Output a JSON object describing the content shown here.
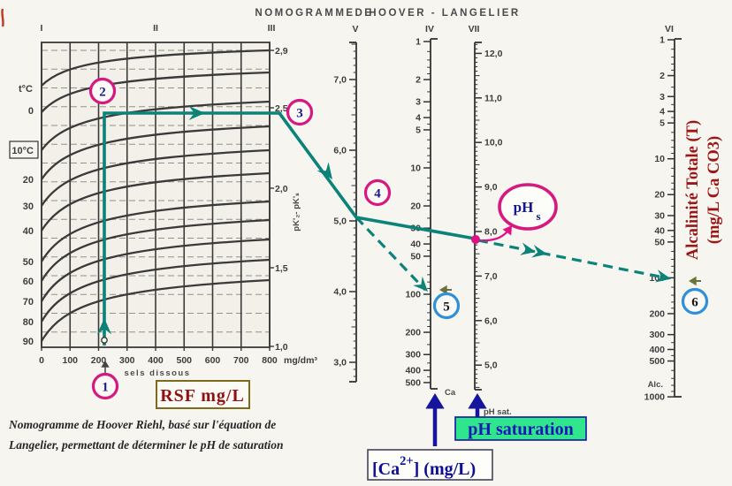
{
  "title": {
    "p1": "NOMOGRAMME",
    "p2": "DE",
    "p3": "HOOVER - LANGELIER"
  },
  "graph": {
    "numerals": [
      "I",
      "II",
      "III"
    ],
    "temp_scale": {
      "title": "t°C",
      "labels": [
        "0",
        "10°C",
        "20",
        "30",
        "40",
        "50",
        "60",
        "70",
        "80",
        "90"
      ],
      "boxed": "10°C"
    },
    "x_axis": {
      "labels": [
        "0",
        "100",
        "200",
        "300",
        "400",
        "500",
        "600",
        "700",
        "800"
      ],
      "unit": "mg/dm³",
      "title": "sels dissous"
    },
    "right_axis": {
      "labels": [
        "2,9",
        "2,5",
        "2,0",
        "1,5",
        "1,0"
      ],
      "title": "pK'₂- pK'ₛ"
    }
  },
  "scales": {
    "v": {
      "numeral": "V",
      "major_labels": [
        "7,0",
        "6,0",
        "5,0",
        "4,0",
        "3,0"
      ]
    },
    "iv": {
      "numeral": "IV",
      "sublabel": "Ca",
      "major_labels": [
        "1",
        "2",
        "3",
        "4",
        "5",
        "10",
        "20",
        "30",
        "40",
        "50",
        "100",
        "200",
        "300",
        "400",
        "500"
      ]
    },
    "vii": {
      "numeral": "VII",
      "sublabel": "pH sat.",
      "major_labels": [
        "12,0",
        "11,0",
        "10,0",
        "9,0",
        "8,0",
        "7,0",
        "6,0",
        "5,0"
      ]
    },
    "vi": {
      "numeral": "VI",
      "sublabel": "Alc.",
      "major_labels": [
        "1",
        "2",
        "3",
        "4",
        "5",
        "10",
        "20",
        "30",
        "40",
        "50",
        "100",
        "200",
        "300",
        "400",
        "500",
        "1000"
      ]
    }
  },
  "annotations": {
    "steps": [
      "1",
      "2",
      "3",
      "4",
      "5",
      "6"
    ],
    "rsf_label": "RSF mg/L",
    "ph_saturation_label": "pH saturation",
    "ca_box": {
      "p1": "[Ca",
      "sup": "2+",
      "p2": "] (mg/L)"
    },
    "phs": {
      "main": "pH",
      "sub": "s"
    },
    "alcalinite": {
      "line1": "Alcalinité Totale (T)",
      "line2": "(mg/L Ca CO3)"
    },
    "caption": {
      "line1": "Nomogramme de Hoover Riehl, basé sur l'équation de",
      "line2": "Langelier, permettant de déterminer le pH de saturation"
    }
  },
  "colors": {
    "teal": "#0c8378",
    "magenta": "#d6187f",
    "navy": "#15159e",
    "blue_ring": "#2f8fd9",
    "dark_red": "#8f1111",
    "green_bg": "#2fe68c",
    "olive": "#6f6f3a",
    "ink": "#3a3a3a"
  },
  "chart_data": {
    "type": "nomogram",
    "title": "NOMOGRAMME DE HOOVER-LANGELIER",
    "graph_curves_temperatures_c": [
      0,
      10,
      20,
      30,
      40,
      50,
      60,
      70,
      80,
      90
    ],
    "x_axis": {
      "label": "sels dissous",
      "unit": "mg/dm³",
      "range": [
        0,
        800
      ],
      "tick_step": 100
    },
    "graph_output_axis": {
      "label": "pK'2 - pK's",
      "tick_values": [
        2.9,
        2.5,
        2.0,
        1.5,
        1.0
      ]
    },
    "scales": [
      {
        "numeral": "I",
        "role": "graph left edge (temperature labels)"
      },
      {
        "numeral": "II",
        "role": "graph interior reference line at 400 mg/dm³"
      },
      {
        "numeral": "III",
        "role": "pK'2 - pK's read-off",
        "values": [
          2.9,
          2.5,
          2.0,
          1.5,
          1.0
        ]
      },
      {
        "numeral": "V",
        "role": "pivot scale",
        "values": [
          7.0,
          6.0,
          5.0,
          4.0,
          3.0
        ],
        "scale": "linear"
      },
      {
        "numeral": "IV",
        "role": "calcium Ca (mg/L)",
        "values": [
          1,
          2,
          3,
          4,
          5,
          10,
          20,
          30,
          40,
          50,
          100,
          200,
          300,
          400,
          500
        ],
        "scale": "log"
      },
      {
        "numeral": "VII",
        "role": "pH saturation result",
        "values": [
          12.0,
          11.0,
          10.0,
          9.0,
          8.0,
          7.0,
          6.0,
          5.0
        ],
        "scale": "linear"
      },
      {
        "numeral": "VI",
        "role": "alcalinité totale (mg/L CaCO3)",
        "values": [
          1,
          2,
          3,
          4,
          5,
          10,
          20,
          30,
          40,
          50,
          100,
          200,
          300,
          400,
          500,
          1000
        ],
        "scale": "log"
      }
    ],
    "worked_example": {
      "step1_sels_dissous_RSF_mg_L": 220,
      "step2_temperature_c": 10,
      "step3_pK2_minus_pKs": 2.5,
      "step4_scale_v_value": 5.05,
      "step5_calcium_mg_L": 100,
      "step6_alcalinite_mg_L": 100,
      "result_pH_saturation": 7.8
    }
  }
}
